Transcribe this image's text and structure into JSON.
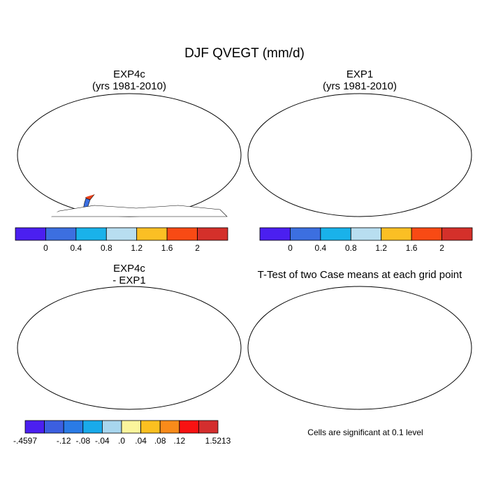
{
  "figure_title": "DJF QVEGT (mm/d)",
  "colors": {
    "scale1": [
      "#4b1ff0",
      "#3c6fe0",
      "#19b2ea",
      "#b8def0",
      "#fbbf24",
      "#f84a14",
      "#d4302a"
    ],
    "diff": [
      "#4b1ff0",
      "#3c5fe0",
      "#2a7be6",
      "#19aaea",
      "#a8d6ee",
      "#fbf59c",
      "#fbc020",
      "#f98b1a",
      "#f81212",
      "#d42e2e"
    ],
    "land": "#3c6fe0",
    "tropics": "#e8401a",
    "tropics_dark": "#d4302a",
    "transition": "#fbbf24",
    "sig": "#ee0000"
  },
  "chart_data": [
    {
      "type": "heatmap",
      "title_line1": "EXP4c",
      "title_line2": "(yrs 1981-2010)",
      "colorbar": {
        "tick_labels": [
          "0",
          "0.4",
          "0.8",
          "1.2",
          "1.6",
          "2"
        ]
      }
    },
    {
      "type": "heatmap",
      "title_line1": "EXP1",
      "title_line2": "(yrs 1981-2010)",
      "colorbar": {
        "tick_labels": [
          "0",
          "0.4",
          "0.8",
          "1.2",
          "1.6",
          "2"
        ]
      }
    },
    {
      "type": "heatmap",
      "title_line1": "EXP4c",
      "title_line2": "- EXP1",
      "colorbar": {
        "tick_labels": [
          "-.4597",
          "-.12",
          "-.08",
          "-.04",
          ".0",
          ".04",
          ".08",
          ".12",
          "1.5213"
        ]
      }
    },
    {
      "type": "heatmap",
      "title_line1": "T-Test of two Case means at each grid point",
      "note": "Cells are significant at 0.1 level"
    }
  ]
}
